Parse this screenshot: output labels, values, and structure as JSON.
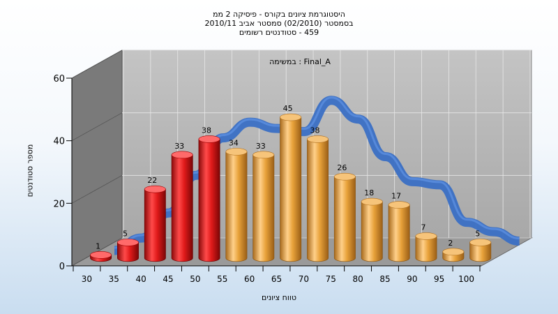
{
  "chart_data": {
    "type": "bar",
    "title_lines": [
      "היסטוגרמת ציונים בקורס - פיסיקה 2 ממ",
      "בסמסטר (02/2010) סמסטר אביב 2010/11",
      "459 - סטודנטים רשומים"
    ],
    "panel_label": "במשימה : Final_A",
    "xlabel": "טווח ציונים",
    "ylabel": "מספר סטודנטים",
    "categories": [
      "30",
      "35",
      "40",
      "45",
      "50",
      "55",
      "60",
      "65",
      "70",
      "75",
      "80",
      "85",
      "90",
      "95",
      "100"
    ],
    "values": [
      1,
      5,
      22,
      33,
      38,
      34,
      33,
      45,
      38,
      26,
      18,
      17,
      7,
      2,
      5
    ],
    "bar_colors": [
      "red",
      "red",
      "red",
      "red",
      "red",
      "orange",
      "orange",
      "orange",
      "orange",
      "orange",
      "orange",
      "orange",
      "orange",
      "orange",
      "orange"
    ],
    "yticks": [
      0,
      20,
      40,
      60
    ],
    "ylim": [
      0,
      60
    ],
    "trend_line": {
      "description": "smoothed distribution curve",
      "values": [
        0,
        4,
        12,
        24,
        36,
        41,
        39,
        38,
        48,
        42,
        30,
        22,
        21,
        9,
        6
      ],
      "color": "#3a6fc4"
    },
    "colors": {
      "red_bar": "#e02020",
      "orange_bar": "#e8a23a",
      "back_wall": "#b4b4b4",
      "side_wall": "#7a7a7a",
      "floor": "#9a9a9a"
    }
  }
}
